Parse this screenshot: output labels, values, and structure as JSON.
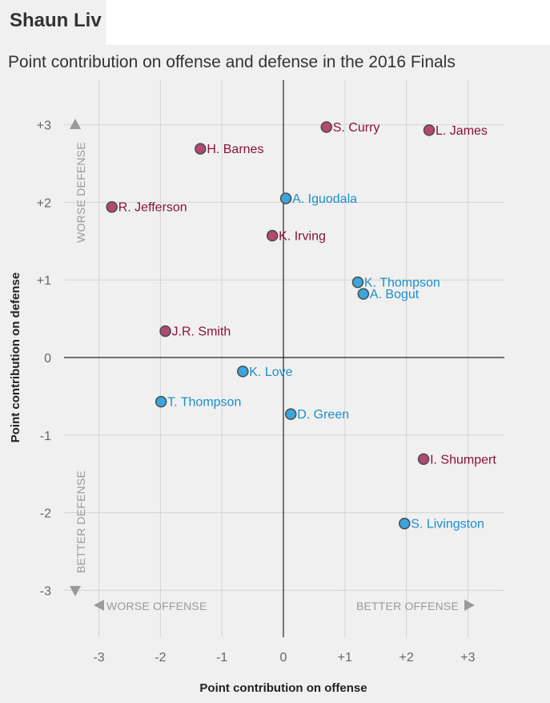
{
  "header": {
    "title_clipped": "Shaun Liv",
    "subtitle": "Point contribution on offense and defense in the 2016 Finals"
  },
  "colors": {
    "worse_defense_player": "#b04a70",
    "worse_defense_label": "#8b1238",
    "better_defense_player": "#3aa6dd",
    "better_defense_label": "#1a8fcd",
    "grid": "#d4d4d4",
    "zero_axis": "#222222",
    "background": "#f0f0f0"
  },
  "chart_data": {
    "type": "scatter",
    "title": "Point contribution on offense and defense in the 2016 Finals",
    "xlabel": "Point contribution on offense",
    "ylabel": "Point contribution on defense",
    "xlim": [
      -3.6,
      3.6
    ],
    "ylim": [
      -3.4,
      3.5
    ],
    "grid": true,
    "xticks": [
      {
        "value": -3,
        "label": "-3"
      },
      {
        "value": -2,
        "label": "-2"
      },
      {
        "value": -1,
        "label": "-1"
      },
      {
        "value": 0,
        "label": "0"
      },
      {
        "value": 1,
        "label": "+1"
      },
      {
        "value": 2,
        "label": "+2"
      },
      {
        "value": 3,
        "label": "+3"
      }
    ],
    "yticks": [
      {
        "value": 3,
        "label": "+3"
      },
      {
        "value": 2,
        "label": "+2"
      },
      {
        "value": 1,
        "label": "+1"
      },
      {
        "value": 0,
        "label": "0"
      },
      {
        "value": -1,
        "label": "-1"
      },
      {
        "value": -2,
        "label": "-2"
      },
      {
        "value": -3,
        "label": "-3"
      }
    ],
    "direction_labels": {
      "worse_defense": "WORSE DEFENSE",
      "better_defense": "BETTER DEFENSE",
      "worse_offense": "WORSE OFFENSE",
      "better_offense": "BETTER OFFENSE"
    },
    "points": [
      {
        "name": "S. Curry",
        "x": 0.7,
        "y": 2.97,
        "group": "worse"
      },
      {
        "name": "L. James",
        "x": 2.37,
        "y": 2.93,
        "group": "worse"
      },
      {
        "name": "H. Barnes",
        "x": -1.35,
        "y": 2.69,
        "group": "worse"
      },
      {
        "name": "R. Jefferson",
        "x": -2.79,
        "y": 1.94,
        "group": "worse"
      },
      {
        "name": "K. Irving",
        "x": -0.18,
        "y": 1.57,
        "group": "worse"
      },
      {
        "name": "J.R. Smith",
        "x": -1.92,
        "y": 0.34,
        "group": "worse"
      },
      {
        "name": "I. Shumpert",
        "x": 2.28,
        "y": -1.31,
        "group": "worse"
      },
      {
        "name": "A. Iguodala",
        "x": 0.04,
        "y": 2.05,
        "group": "better"
      },
      {
        "name": "K. Thompson",
        "x": 1.21,
        "y": 0.97,
        "group": "better"
      },
      {
        "name": "A. Bogut",
        "x": 1.3,
        "y": 0.82,
        "group": "better"
      },
      {
        "name": "K. Love",
        "x": -0.66,
        "y": -0.18,
        "group": "better"
      },
      {
        "name": "T. Thompson",
        "x": -1.99,
        "y": -0.57,
        "group": "better"
      },
      {
        "name": "D. Green",
        "x": 0.12,
        "y": -0.73,
        "group": "better"
      },
      {
        "name": "S. Livingston",
        "x": 1.97,
        "y": -2.14,
        "group": "better"
      }
    ]
  }
}
